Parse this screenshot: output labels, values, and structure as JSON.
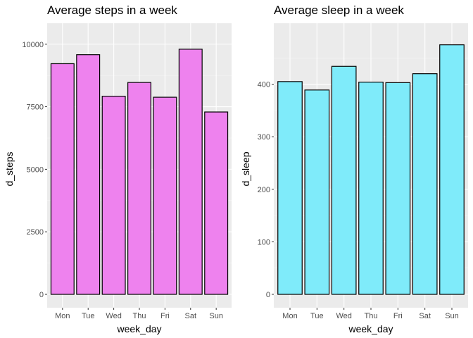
{
  "chart_data": [
    {
      "type": "bar",
      "title": "Average steps in a week",
      "xlabel": "week_day",
      "ylabel": "d_steps",
      "categories": [
        "Mon",
        "Tue",
        "Wed",
        "Thu",
        "Fri",
        "Sat",
        "Sun"
      ],
      "values": [
        9220,
        9580,
        7920,
        8470,
        7880,
        9800,
        7290
      ],
      "ylim": [
        0,
        10500
      ],
      "yticks": [
        0,
        2500,
        5000,
        7500,
        10000
      ],
      "ytick_labels": [
        "0",
        "2500",
        "5000",
        "7500",
        "10000"
      ],
      "grid": true,
      "bar_color": "#EE82EE",
      "bar_outline": "#000000",
      "panel_background": "#EBEBEB"
    },
    {
      "type": "bar",
      "title": "Average sleep in a week",
      "xlabel": "week_day",
      "ylabel": "d_sleep",
      "categories": [
        "Mon",
        "Tue",
        "Wed",
        "Thu",
        "Fri",
        "Sat",
        "Sun"
      ],
      "values": [
        405,
        389,
        434,
        404,
        403,
        420,
        475
      ],
      "ylim": [
        0,
        500
      ],
      "yticks": [
        0,
        100,
        200,
        300,
        400
      ],
      "ytick_labels": [
        "0",
        "100",
        "200",
        "300",
        "400"
      ],
      "grid": true,
      "bar_color": "#7FEBFA",
      "bar_outline": "#000000",
      "panel_background": "#EBEBEB"
    }
  ]
}
